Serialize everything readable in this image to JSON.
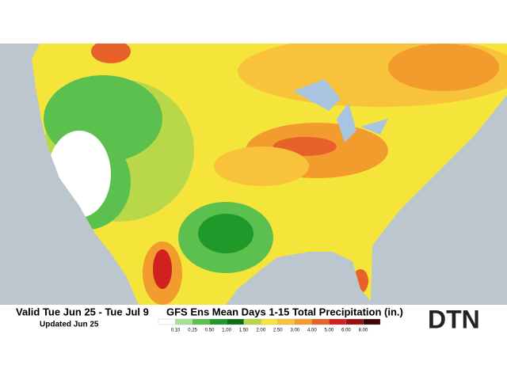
{
  "header": {
    "valid": "Valid Tue Jun 25 - Tue Jul 9",
    "updated": "Updated Jun 25",
    "title": "GFS Ens Mean Days 1-15 Total Precipitation (in.)"
  },
  "legend": {
    "labels": [
      "0.10",
      "0.25",
      "0.50",
      "1.00",
      "1.50",
      "2.00",
      "2.50",
      "3.00",
      "4.00",
      "5.00",
      "6.00",
      "8.00"
    ],
    "colors": [
      "#ffffff",
      "#a8e09a",
      "#5cc04e",
      "#1f9a2a",
      "#0d6e1a",
      "#b8d84a",
      "#f5e53a",
      "#f8c23a",
      "#f39c2e",
      "#e8602a",
      "#d02020",
      "#9a1010",
      "#3a0505"
    ]
  },
  "logo": "DTN"
}
